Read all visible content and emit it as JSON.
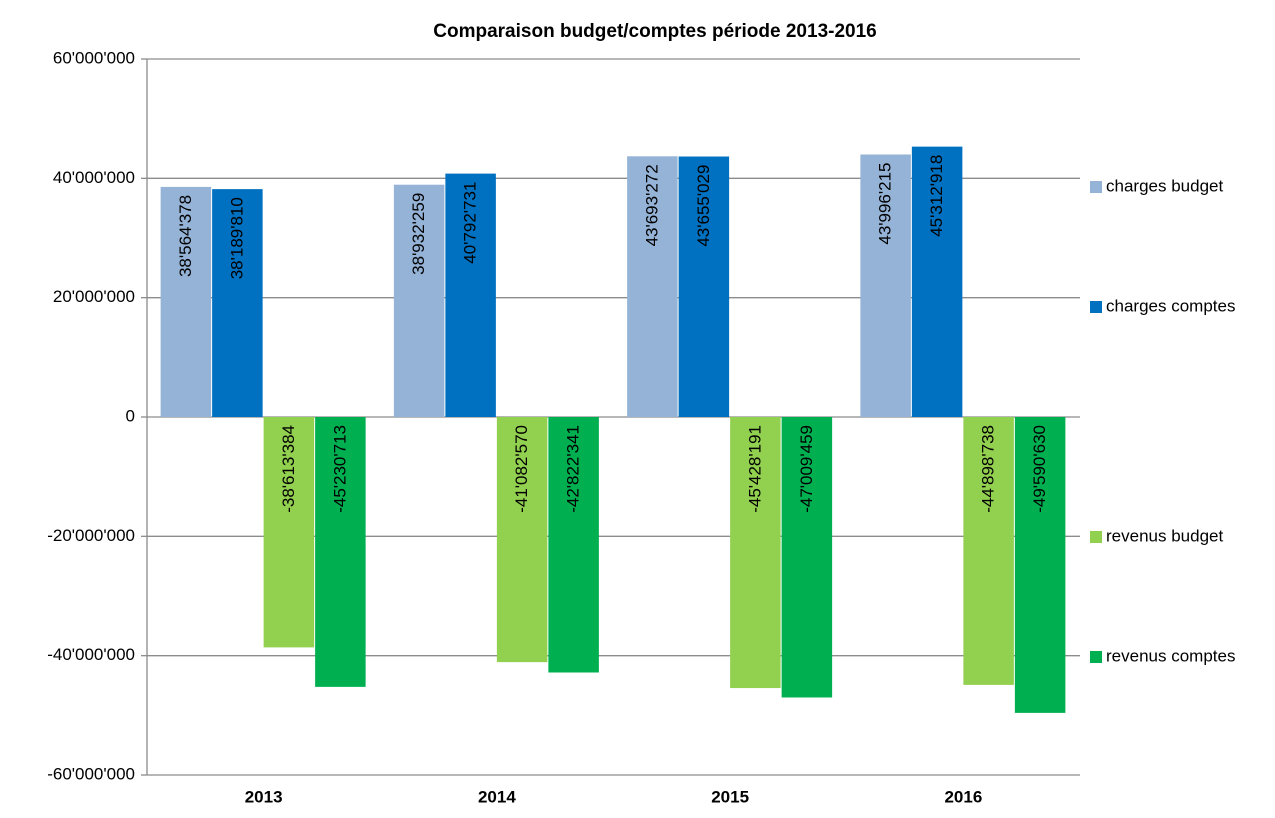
{
  "chart_data": {
    "type": "bar",
    "title": "Comparaison budget/comptes période 2013-2016",
    "categories": [
      "2013",
      "2014",
      "2015",
      "2016"
    ],
    "series": [
      {
        "name": "charges budget",
        "color": "#95b3d7",
        "values": [
          38564378,
          38932259,
          43693272,
          43996215
        ],
        "value_labels": [
          "38'564'378",
          "38'932'259",
          "43'693'272",
          "43'996'215"
        ]
      },
      {
        "name": "charges comptes",
        "color": "#0070c0",
        "values": [
          38189810,
          40792731,
          43655029,
          45312918
        ],
        "value_labels": [
          "38'189'810",
          "40'792'731",
          "43'655'029",
          "45'312'918"
        ]
      },
      {
        "name": "revenus budget",
        "color": "#92d050",
        "values": [
          -38613384,
          -41082570,
          -45428191,
          -44898738
        ],
        "value_labels": [
          "-38'613'384",
          "-41'082'570",
          "-45'428'191",
          "-44'898'738"
        ]
      },
      {
        "name": "revenus comptes",
        "color": "#00b050",
        "values": [
          -45230713,
          -42822341,
          -47009459,
          -49590630
        ],
        "value_labels": [
          "-45'230'713",
          "-42'822'341",
          "-47'009'459",
          "-49'590'630"
        ]
      }
    ],
    "ylim": [
      -60000000,
      60000000
    ],
    "yticks": [
      {
        "value": -60000000,
        "label": "-60'000'000"
      },
      {
        "value": -40000000,
        "label": "-40'000'000"
      },
      {
        "value": -20000000,
        "label": "-20'000'000"
      },
      0,
      {
        "value": 20000000,
        "label": "20'000'000"
      },
      {
        "value": 40000000,
        "label": "40'000'000"
      },
      {
        "value": 60000000,
        "label": "60'000'000"
      }
    ],
    "grid": true
  }
}
